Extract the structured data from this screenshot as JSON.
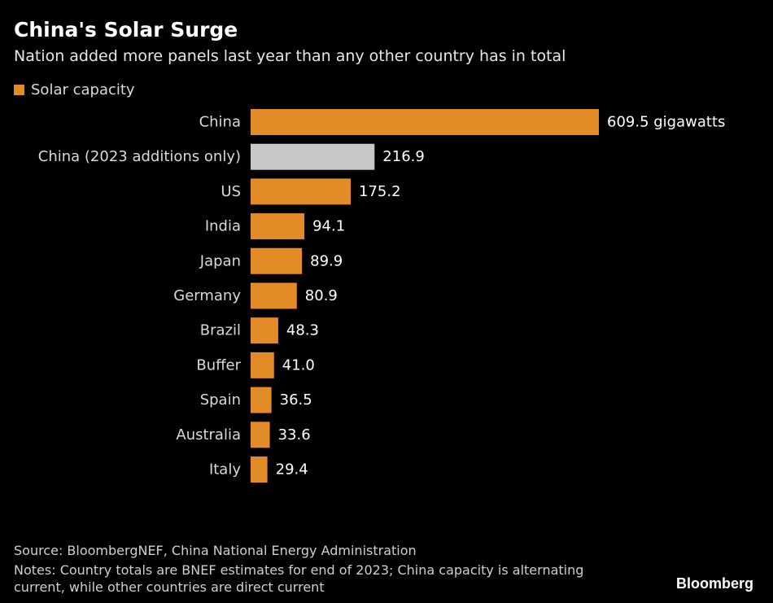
{
  "header": {
    "title": "China's Solar Surge",
    "subtitle": "Nation added more panels last year than any other country has in total"
  },
  "legend": {
    "label": "Solar capacity",
    "color": "#e38b26"
  },
  "footer": {
    "source": "Source: BloombergNEF, China National Energy Administration",
    "notes": "Notes: Country totals are BNEF estimates for end of 2023; China capacity is alternating current, while other countries are direct current",
    "brand": "Bloomberg"
  },
  "chart_data": {
    "type": "bar",
    "orientation": "horizontal",
    "title": "China's Solar Surge",
    "subtitle": "Nation added more panels last year than any other country has in total",
    "legend": [
      "Solar capacity"
    ],
    "legend_position": "top-left",
    "grid": false,
    "categories": [
      "China",
      "China (2023 additions only)",
      "US",
      "India",
      "Japan",
      "Germany",
      "Brazil",
      "Buffer",
      "Spain",
      "Australia",
      "Italy"
    ],
    "values": [
      609.5,
      216.9,
      175.2,
      94.1,
      89.9,
      80.9,
      48.3,
      41.0,
      36.5,
      33.6,
      29.4
    ],
    "value_labels": [
      "609.5 gigawatts",
      "216.9",
      "175.2",
      "94.1",
      "89.9",
      "80.9",
      "48.3",
      "41.0",
      "36.5",
      "33.6",
      "29.4"
    ],
    "colors": [
      "#e38b26",
      "#c8c8c8",
      "#e38b26",
      "#e38b26",
      "#e38b26",
      "#e38b26",
      "#e38b26",
      "#e38b26",
      "#e38b26",
      "#e38b26",
      "#e38b26"
    ],
    "xlim": [
      0,
      609.5
    ]
  }
}
